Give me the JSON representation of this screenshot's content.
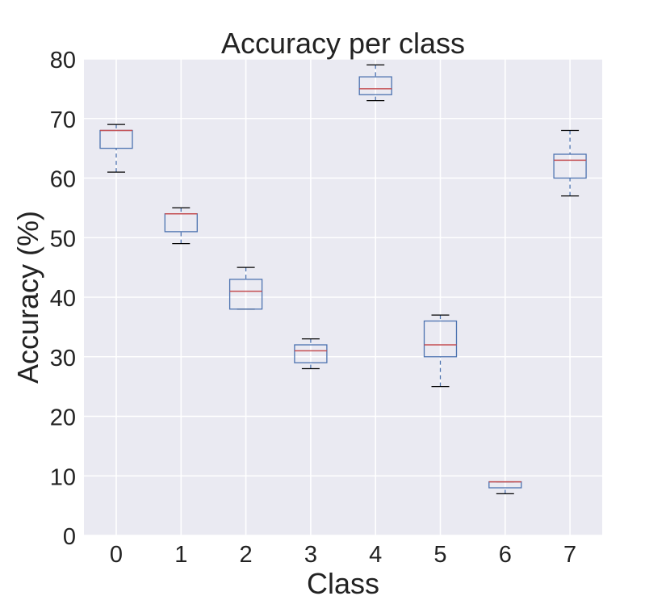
{
  "chart_data": {
    "type": "boxplot",
    "title": "Accuracy per class",
    "xlabel": "Class",
    "ylabel": "Accuracy (%)",
    "categories": [
      "0",
      "1",
      "2",
      "3",
      "4",
      "5",
      "6",
      "7"
    ],
    "ylim": [
      0,
      80
    ],
    "yticks": [
      0,
      10,
      20,
      30,
      40,
      50,
      60,
      70,
      80
    ],
    "ytick_labels": [
      "0",
      "10",
      "20",
      "30",
      "40",
      "50",
      "60",
      "70",
      "80"
    ],
    "grid": true,
    "boxes": [
      {
        "category": "0",
        "whisker_low": 61,
        "q1": 65,
        "median": 68,
        "q3": 68,
        "whisker_high": 69
      },
      {
        "category": "1",
        "whisker_low": 49,
        "q1": 51,
        "median": 54,
        "q3": 54,
        "whisker_high": 55
      },
      {
        "category": "2",
        "whisker_low": 38,
        "q1": 38,
        "median": 41,
        "q3": 43,
        "whisker_high": 45
      },
      {
        "category": "3",
        "whisker_low": 28,
        "q1": 29,
        "median": 31,
        "q3": 32,
        "whisker_high": 33
      },
      {
        "category": "4",
        "whisker_low": 73,
        "q1": 74,
        "median": 75,
        "q3": 77,
        "whisker_high": 79
      },
      {
        "category": "5",
        "whisker_low": 25,
        "q1": 30,
        "median": 32,
        "q3": 36,
        "whisker_high": 37
      },
      {
        "category": "6",
        "whisker_low": 7,
        "q1": 8,
        "median": 9,
        "q3": 9,
        "whisker_high": 9
      },
      {
        "category": "7",
        "whisker_low": 57,
        "q1": 60,
        "median": 63,
        "q3": 64,
        "whisker_high": 68
      }
    ],
    "colors": {
      "plot_background": "#EAEAF2",
      "grid": "#FFFFFF",
      "box": "#4C72B0",
      "median": "#C44E52",
      "cap": "#000000"
    }
  }
}
